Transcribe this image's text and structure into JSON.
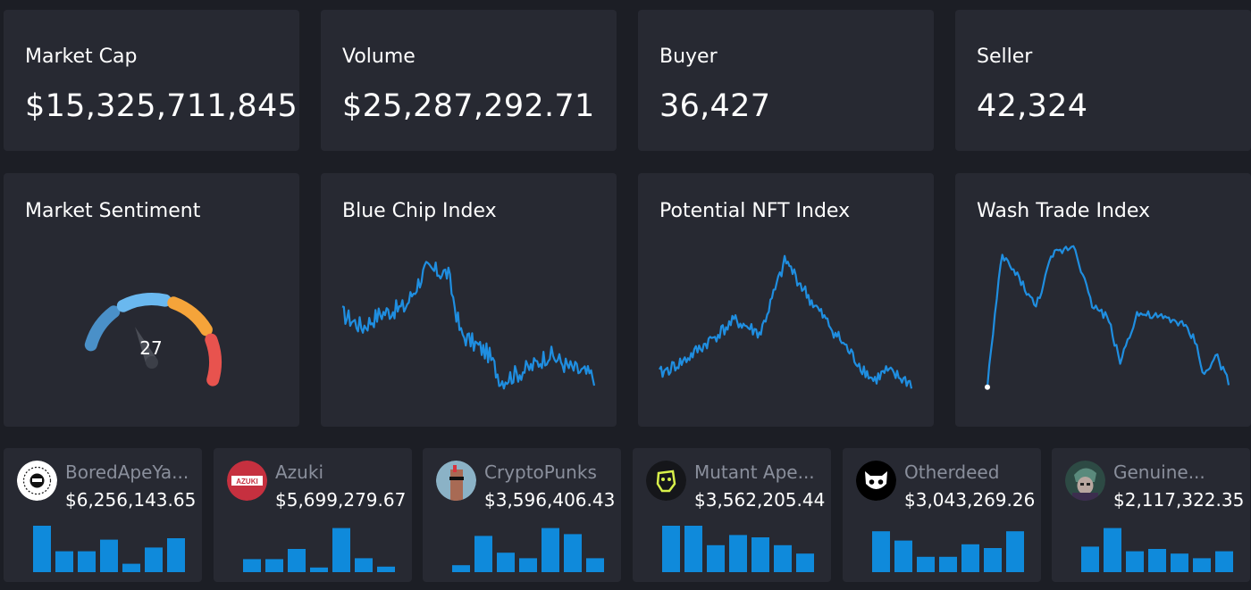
{
  "stats": [
    {
      "label": "Market Cap",
      "value": "$15,325,711,845.3"
    },
    {
      "label": "Volume",
      "value": "$25,287,292.71"
    },
    {
      "label": "Buyer",
      "value": "36,427"
    },
    {
      "label": "Seller",
      "value": "42,324"
    }
  ],
  "sentiment": {
    "title": "Market Sentiment",
    "value": "27",
    "value_num": 27,
    "colors": [
      "#4a90c8",
      "#6ab8ef",
      "#f5a43a",
      "#e8534e"
    ]
  },
  "indices": [
    {
      "title": "Blue Chip Index",
      "color": "#1f8ee0"
    },
    {
      "title": "Potential NFT Index",
      "color": "#1f8ee0"
    },
    {
      "title": "Wash Trade Index",
      "color": "#1f8ee0"
    }
  ],
  "collections": [
    {
      "name": "BoredApeYa...",
      "price": "$6,256,143.65",
      "icon": "bored-ape-logo-icon",
      "bars": [
        100,
        45,
        45,
        70,
        18,
        53,
        73
      ]
    },
    {
      "name": "Azuki",
      "price": "$5,699,279.67",
      "icon": "azuki-logo-icon",
      "logo_text": "AZUKI",
      "bars": [
        28,
        28,
        50,
        10,
        95,
        30,
        12
      ]
    },
    {
      "name": "CryptoPunks",
      "price": "$3,596,406.43",
      "icon": "cryptopunk-icon",
      "bars": [
        15,
        78,
        42,
        30,
        95,
        82,
        30
      ]
    },
    {
      "name": "Mutant Ape...",
      "price": "$3,562,205.44",
      "icon": "mutant-ape-icon",
      "bars": [
        100,
        100,
        58,
        80,
        75,
        58,
        40
      ]
    },
    {
      "name": "Otherdeed",
      "price": "$3,043,269.26",
      "icon": "otherdeed-icon",
      "bars": [
        88,
        68,
        33,
        33,
        60,
        52,
        88
      ]
    },
    {
      "name": "Genuine...",
      "price": "$2,117,322.35",
      "icon": "genuine-undead-icon",
      "bars": [
        55,
        95,
        45,
        50,
        40,
        30,
        45
      ]
    }
  ]
}
